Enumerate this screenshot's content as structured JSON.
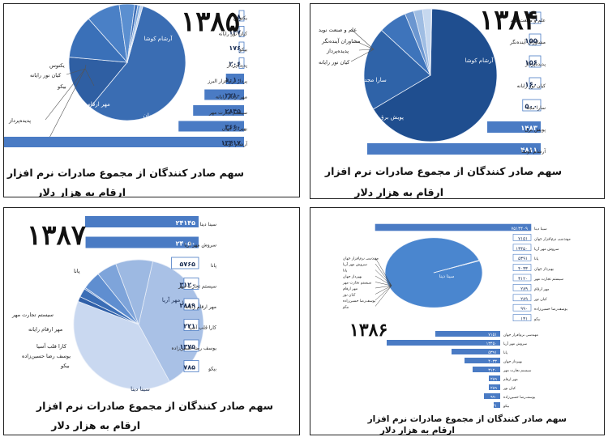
{
  "chart_data": [
    {
      "type": "bar+pie",
      "year": "۱۳۸۵",
      "title": "سهم صادر کنندگان از مجموع صادرات نرم افزار",
      "subtitle": "ارقام به هزار دلار",
      "categories": [
        "یکتوس",
        "کیان نور رایانه",
        "بیکو",
        "پدیده‌پرداز",
        "پرداز نرم‌افزار البرز",
        "مهر ارقام رایانه",
        "سیستم تجارت مهر",
        "بهپرداز جهان",
        "آرشام کوشا"
      ],
      "value_labels": [
        "۸",
        "۱۴۷",
        "۱۷۶",
        "۲۰۶",
        "۱۰۱۰",
        "۲۲۱۰",
        "۲۸۴۵",
        "۳۶۶۰",
        "۱۳۴۱۷"
      ],
      "values": [
        8,
        147,
        176,
        206,
        1010,
        2210,
        2845,
        3660,
        13417
      ],
      "pie_labels": [
        "آرشام کوشا",
        "بهپرداز جهان",
        "سیستم تجارت مهر",
        "مهر ارقام رایانه",
        "پرداز نرم‌افزار البرز",
        "پدیده‌پرداز",
        "بیکو",
        "کیان نور رایانه",
        "یکتوس"
      ]
    },
    {
      "type": "bar+pie",
      "year": "۱۳۸۴",
      "title": "سهم صادر کنندگان از مجموع صادرات نرم افزار",
      "subtitle": "ارقام به هزار دلار",
      "categories": [
        "علم و صنعت نوید",
        "مشاوران آینده‌نگر",
        "پدیده‌پرداز",
        "کیان نور رایانه",
        "سارا مجد",
        "پویش برق",
        "آرشام کوشا"
      ],
      "value_labels": [
        "۹",
        "۱۵۵",
        "۱۵۶",
        "۱۶۰",
        "۵۰۰",
        "۱۴۸۳",
        "۴۸۱۱"
      ],
      "values": [
        9,
        155,
        156,
        160,
        500,
        1483,
        4811
      ],
      "pie_labels": [
        "آرشام کوشا",
        "پویش برق",
        "سارا مجد",
        "کیان نور رایانه",
        "پدیده‌پرداز",
        "مشاوران آینده‌نگر",
        "علم و صنعت نوید"
      ]
    },
    {
      "type": "bar+pie",
      "year": "۱۳۸۷",
      "title": "سهم صادر کنندگان از مجموع صادرات نرم افزار",
      "subtitle": "ارقام به هزار دلار",
      "categories": [
        "سینا دینا",
        "سروش مهر آریا",
        "پانا",
        "سیستم تجارت مهر",
        "مهر ارقام رایانه",
        "کارا قلب آسیا",
        "یوسف رضا حسین‌زاده",
        "بیکو"
      ],
      "value_labels": [
        "۲۴۱۴۵",
        "۲۴۰۵۰",
        "۵۷۶۵",
        "۳۱۲۰",
        "۲۸۸۹",
        "۲۲۱",
        "۱۳۷۵",
        "۷۸۵"
      ],
      "values": [
        24145,
        24050,
        5765,
        3120,
        2889,
        221,
        1375,
        785
      ],
      "pie_labels": [
        "سروش مهر آریا",
        "سینا دینا",
        "بیکو",
        "یوسف رضا حسین‌زاده",
        "کارا قلب آسیا",
        "مهر ارقام رایانه",
        "سیستم تجارت مهر",
        "پانا"
      ]
    },
    {
      "type": "bar+pie",
      "year": "۱۳۸۶",
      "title": "سهم صادر کنندگان از مجموع صادرات نرم افزار",
      "subtitle": "ارقام به هزار دلار",
      "categories": [
        "سینا دینا",
        "مهندسی نرم‌افزار جهان",
        "سروش مهر آریا",
        "پانا",
        "بهپرداز جهان",
        "سیستم تجارت مهر",
        "مهر ارقام",
        "کیان نور",
        "یوسف‌رضا حسین‌زاده",
        "بیکو"
      ],
      "value_labels": [
        "۷۵۱۳۴۰۹",
        "۷۱۵۱",
        "۱۳۴۵۰",
        "۵۳۹۱",
        "۴۰۳۳",
        "۳۱۲۰",
        "۲۸۹",
        "۲۸۹",
        "۹۹۰",
        "۱۳۱"
      ],
      "values": [
        7513409,
        7151,
        13450,
        5391,
        4033,
        3120,
        289,
        289,
        990,
        131
      ],
      "pie_labels": [
        "سینا دینا",
        "مهندسی نرم‌افزار جهان",
        "سروش مهر آریا",
        "پانا",
        "بهپرداز جهان",
        "سیستم تجارت مهر",
        "مهر ارقام",
        "کیان نور",
        "یوسف‌رضا حسین‌زاده",
        "بیکو"
      ],
      "bars2_value_labels": [
        "۷۱۵۱",
        "۱۳۴۵۰",
        "۵۳۹۱",
        "۴۰۳۳",
        "۳۱۲۰",
        "۲۸۹",
        "۲۸۹",
        "۹۹۰",
        "۱۳۱"
      ]
    }
  ]
}
